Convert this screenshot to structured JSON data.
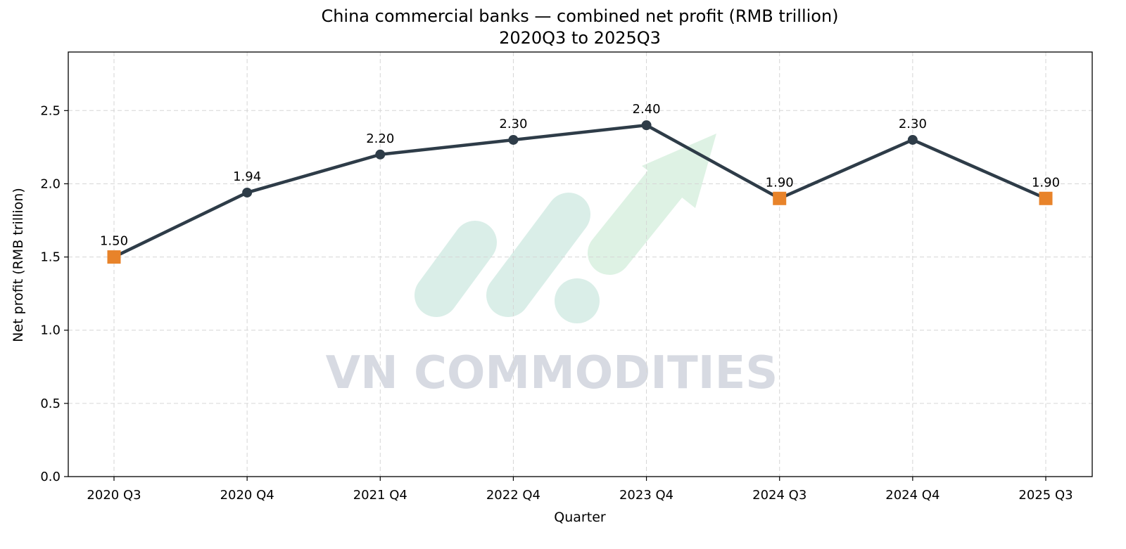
{
  "chart_data": {
    "type": "line",
    "title": "China commercial banks — combined net profit (RMB trillion)",
    "subtitle": "2020Q3 to 2025Q3",
    "xlabel": "Quarter",
    "ylabel": "Net profit (RMB trillion)",
    "categories": [
      "2020 Q3",
      "2020 Q4",
      "2021 Q4",
      "2022 Q4",
      "2023 Q4",
      "2024 Q3",
      "2024 Q4",
      "2025 Q3"
    ],
    "values": [
      1.5,
      1.94,
      2.2,
      2.3,
      2.4,
      1.9,
      2.3,
      1.9
    ],
    "data_labels": [
      "1.50",
      "1.94",
      "2.20",
      "2.30",
      "2.40",
      "1.90",
      "2.30",
      "1.90"
    ],
    "marker_types": [
      "square",
      "circle",
      "circle",
      "circle",
      "circle",
      "square",
      "circle",
      "square"
    ],
    "ylim": [
      0,
      2.9
    ],
    "yticks": [
      0.0,
      0.5,
      1.0,
      1.5,
      2.0,
      2.5
    ],
    "ytick_labels": [
      "0.0",
      "0.5",
      "1.0",
      "1.5",
      "2.0",
      "2.5"
    ],
    "grid": true,
    "colors": {
      "line": "#2e3c48",
      "highlight_marker": "#e8832a"
    }
  },
  "watermark": {
    "text": "VN COMMODITIES"
  }
}
